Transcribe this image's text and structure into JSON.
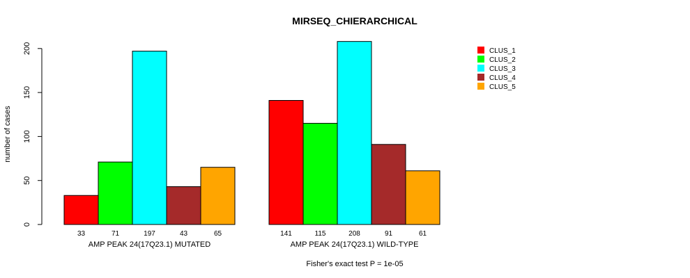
{
  "chart_data": {
    "type": "bar",
    "title": "MIRSEQ_CHIERARCHICAL",
    "ylabel": "number of cases",
    "xlabel": "",
    "ylim": [
      0,
      210
    ],
    "yticks": [
      0,
      50,
      100,
      150,
      200
    ],
    "grid": false,
    "legend_position": "top-right",
    "categories": [
      "AMP PEAK 24(17Q23.1) MUTATED",
      "AMP PEAK 24(17Q23.1) WILD-TYPE"
    ],
    "series": [
      {
        "name": "CLUS_1",
        "color": "#ff0000",
        "values": [
          33,
          141
        ]
      },
      {
        "name": "CLUS_2",
        "color": "#00ff00",
        "values": [
          71,
          115
        ]
      },
      {
        "name": "CLUS_3",
        "color": "#00ffff",
        "values": [
          197,
          208
        ]
      },
      {
        "name": "CLUS_4",
        "color": "#a52a2a",
        "values": [
          43,
          91
        ]
      },
      {
        "name": "CLUS_5",
        "color": "#ffa500",
        "values": [
          65,
          61
        ]
      }
    ],
    "footnote": "Fisher's exact test P = 1e-05"
  }
}
